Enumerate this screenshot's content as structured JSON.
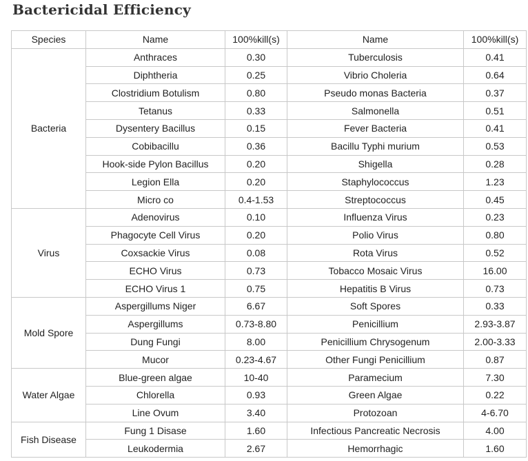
{
  "title": "Bactericidal Efficiency",
  "headers": {
    "species": "Species",
    "name_left": "Name",
    "kill_left": "100%kill(s)",
    "name_right": "Name",
    "kill_right": "100%kill(s)"
  },
  "groups": [
    {
      "species": "Bacteria",
      "rows": [
        {
          "name1": "Anthraces",
          "kill1": "0.30",
          "name2": "Tuberculosis",
          "kill2": "0.41"
        },
        {
          "name1": "Diphtheria",
          "kill1": "0.25",
          "name2": "Vibrio Choleria",
          "kill2": "0.64"
        },
        {
          "name1": "Clostridium Botulism",
          "kill1": "0.80",
          "name2": "Pseudo monas Bacteria",
          "kill2": "0.37"
        },
        {
          "name1": "Tetanus",
          "kill1": "0.33",
          "name2": "Salmonella",
          "kill2": "0.51"
        },
        {
          "name1": "Dysentery Bacillus",
          "kill1": "0.15",
          "name2": "Fever Bacteria",
          "kill2": "0.41"
        },
        {
          "name1": "Cobibacillu",
          "kill1": "0.36",
          "name2": "Bacillu Typhi murium",
          "kill2": "0.53"
        },
        {
          "name1": "Hook-side Pylon Bacillus",
          "kill1": "0.20",
          "name2": "Shigella",
          "kill2": "0.28"
        },
        {
          "name1": "Legion Ella",
          "kill1": "0.20",
          "name2": "Staphylococcus",
          "kill2": "1.23"
        },
        {
          "name1": "Micro co",
          "kill1": "0.4-1.53",
          "name2": "Streptococcus",
          "kill2": "0.45"
        }
      ]
    },
    {
      "species": "Virus",
      "rows": [
        {
          "name1": "Adenovirus",
          "kill1": "0.10",
          "name2": "Influenza Virus",
          "kill2": "0.23"
        },
        {
          "name1": "Phagocyte Cell Virus",
          "kill1": "0.20",
          "name2": "Polio Virus",
          "kill2": "0.80"
        },
        {
          "name1": "Coxsackie Virus",
          "kill1": "0.08",
          "name2": "Rota Virus",
          "kill2": "0.52"
        },
        {
          "name1": "ECHO Virus",
          "kill1": "0.73",
          "name2": "Tobacco Mosaic Virus",
          "kill2": "16.00"
        },
        {
          "name1": "ECHO Virus 1",
          "kill1": "0.75",
          "name2": "Hepatitis B Virus",
          "kill2": "0.73"
        }
      ]
    },
    {
      "species": "Mold Spore",
      "rows": [
        {
          "name1": "Aspergillums Niger",
          "kill1": "6.67",
          "name2": "Soft Spores",
          "kill2": "0.33"
        },
        {
          "name1": "Aspergillums",
          "kill1": "0.73-8.80",
          "name2": "Penicillium",
          "kill2": "2.93-3.87"
        },
        {
          "name1": "Dung Fungi",
          "kill1": "8.00",
          "name2": "Penicillium Chrysogenum",
          "kill2": "2.00-3.33"
        },
        {
          "name1": "Mucor",
          "kill1": "0.23-4.67",
          "name2": "Other Fungi Penicillium",
          "kill2": "0.87"
        }
      ]
    },
    {
      "species": "Water Algae",
      "rows": [
        {
          "name1": "Blue-green algae",
          "kill1": "10-40",
          "name2": "Paramecium",
          "kill2": "7.30"
        },
        {
          "name1": "Chlorella",
          "kill1": "0.93",
          "name2": "Green Algae",
          "kill2": "0.22"
        },
        {
          "name1": "Line Ovum",
          "kill1": "3.40",
          "name2": "Protozoan",
          "kill2": "4-6.70"
        }
      ]
    },
    {
      "species": "Fish Disease",
      "rows": [
        {
          "name1": "Fung 1 Disase",
          "kill1": "1.60",
          "name2": "Infectious Pancreatic Necrosis",
          "kill2": "4.00"
        },
        {
          "name1": "Leukodermia",
          "kill1": "2.67",
          "name2": "Hemorrhagic",
          "kill2": "1.60"
        }
      ]
    }
  ]
}
